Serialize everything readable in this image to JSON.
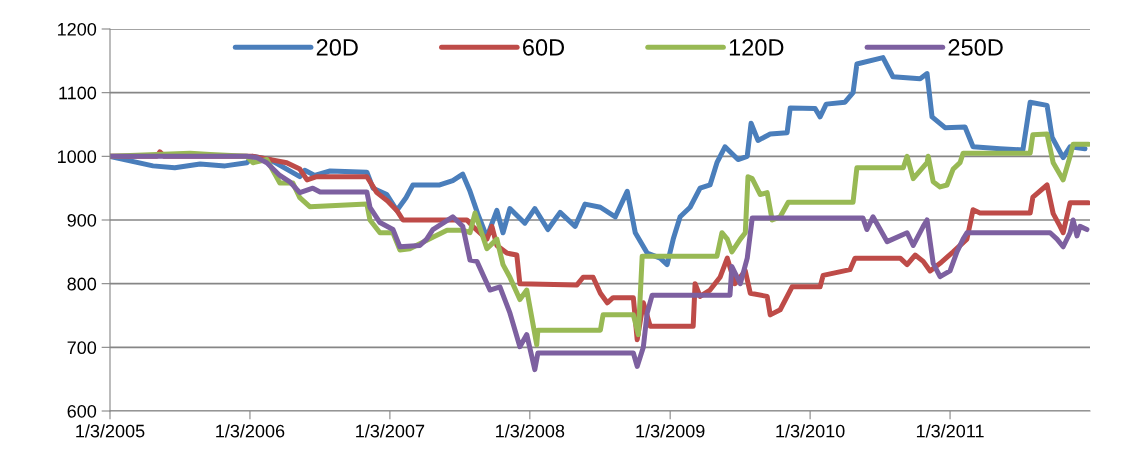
{
  "chart_data": {
    "type": "line",
    "legend": "top",
    "grid": "y",
    "marker": "none",
    "line_style": "solid",
    "xlim": [
      "2005-01-03",
      "2012-01-03"
    ],
    "xticks": [
      {
        "value": "2005-01-03",
        "label": "1/3/2005"
      },
      {
        "value": "2006-01-03",
        "label": "1/3/2006"
      },
      {
        "value": "2007-01-03",
        "label": "1/3/2007"
      },
      {
        "value": "2008-01-03",
        "label": "1/3/2008"
      },
      {
        "value": "2009-01-03",
        "label": "1/3/2009"
      },
      {
        "value": "2010-01-03",
        "label": "1/3/2010"
      },
      {
        "value": "2011-01-03",
        "label": "1/3/2011"
      }
    ],
    "ylim": [
      600,
      1200
    ],
    "yticks": [
      600,
      700,
      800,
      900,
      1000,
      1100,
      1200
    ],
    "series": [
      {
        "name": "20D",
        "color": "#4a7ebb",
        "x": [
          "2005-01-03",
          "2005-04-25",
          "2005-06-21",
          "2005-08-26",
          "2005-10-30",
          "2005-12-26",
          "2006-01-11",
          "2006-02-24",
          "2006-05-13",
          "2006-05-26",
          "2006-06-21",
          "2006-07-31",
          "2006-11-04",
          "2006-11-20",
          "2006-12-26",
          "2007-01-21",
          "2007-02-14",
          "2007-03-04",
          "2007-05-13",
          "2007-06-16",
          "2007-07-12",
          "2007-07-31",
          "2007-08-20",
          "2007-09-13",
          "2007-10-09",
          "2007-10-25",
          "2007-11-12",
          "2007-12-21",
          "2008-01-16",
          "2008-02-19",
          "2008-03-22",
          "2008-04-30",
          "2008-05-26",
          "2008-07-05",
          "2008-08-13",
          "2008-09-13",
          "2008-10-04",
          "2008-11-04",
          "2008-12-08",
          "2008-12-26",
          "2009-01-11",
          "2009-01-29",
          "2009-02-24",
          "2009-03-22",
          "2009-04-17",
          "2009-05-05",
          "2009-05-26",
          "2009-06-29",
          "2009-07-23",
          "2009-08-02",
          "2009-08-20",
          "2009-09-21",
          "2009-11-04",
          "2009-11-12",
          "2010-01-16",
          "2010-01-29",
          "2010-02-14",
          "2010-04-04",
          "2010-04-25",
          "2010-05-05",
          "2010-07-12",
          "2010-08-07",
          "2010-10-17",
          "2010-11-04",
          "2010-11-17",
          "2010-12-21",
          "2011-02-11",
          "2011-03-04",
          "2011-05-13",
          "2011-07-12",
          "2011-07-31",
          "2011-09-13",
          "2011-09-26",
          "2011-10-25",
          "2011-11-12",
          "2011-12-21"
        ],
        "values": [
          1000,
          985,
          982,
          988,
          985,
          990,
          1000,
          995,
          968,
          978,
          970,
          977,
          975,
          950,
          940,
          915,
          935,
          955,
          955,
          962,
          972,
          945,
          910,
          873,
          915,
          880,
          918,
          895,
          918,
          885,
          912,
          890,
          925,
          920,
          905,
          945,
          880,
          848,
          840,
          830,
          870,
          905,
          920,
          950,
          955,
          990,
          1015,
          995,
          1000,
          1052,
          1025,
          1035,
          1037,
          1076,
          1075,
          1062,
          1082,
          1085,
          1100,
          1145,
          1155,
          1125,
          1122,
          1130,
          1062,
          1045,
          1046,
          1015,
          1012,
          1010,
          1085,
          1080,
          1030,
          998,
          1015,
          1012
        ]
      },
      {
        "name": "60D",
        "color": "#be4b48",
        "x": [
          "2005-01-03",
          "2005-05-05",
          "2005-05-13",
          "2005-05-25",
          "2006-01-11",
          "2006-04-09",
          "2006-05-13",
          "2006-06-01",
          "2006-06-26",
          "2006-11-04",
          "2006-11-30",
          "2006-12-28",
          "2007-01-21",
          "2007-02-06",
          "2007-07-23",
          "2007-08-07",
          "2007-09-13",
          "2007-09-26",
          "2007-10-09",
          "2007-11-04",
          "2007-11-30",
          "2007-12-08",
          "2008-05-05",
          "2008-05-21",
          "2008-06-16",
          "2008-07-05",
          "2008-07-23",
          "2008-08-07",
          "2008-09-29",
          "2008-10-09",
          "2008-10-25",
          "2008-11-12",
          "2009-03-04",
          "2009-03-09",
          "2009-03-22",
          "2009-04-17",
          "2009-05-13",
          "2009-06-01",
          "2009-06-21",
          "2009-07-18",
          "2009-07-31",
          "2009-09-13",
          "2009-09-21",
          "2009-10-17",
          "2009-11-17",
          "2010-01-29",
          "2010-02-06",
          "2010-04-17",
          "2010-04-30",
          "2010-08-26",
          "2010-09-13",
          "2010-10-04",
          "2010-10-25",
          "2010-11-12",
          "2010-12-08",
          "2011-01-11",
          "2011-02-16",
          "2011-03-04",
          "2011-03-22",
          "2011-07-31",
          "2011-08-07",
          "2011-09-13",
          "2011-09-29",
          "2011-10-17",
          "2011-10-25",
          "2011-11-12",
          "2011-12-30"
        ],
        "values": [
          1000,
          1000,
          1007,
          1000,
          1000,
          990,
          980,
          963,
          968,
          968,
          943,
          930,
          915,
          900,
          900,
          890,
          870,
          890,
          860,
          848,
          845,
          800,
          798,
          810,
          810,
          785,
          770,
          778,
          778,
          712,
          770,
          733,
          733,
          800,
          780,
          790,
          810,
          840,
          800,
          820,
          785,
          780,
          751,
          759,
          795,
          795,
          813,
          822,
          840,
          840,
          830,
          845,
          835,
          820,
          832,
          850,
          870,
          916,
          911,
          911,
          936,
          955,
          910,
          890,
          880,
          927,
          927
        ]
      },
      {
        "name": "120D",
        "color": "#98b954",
        "x": [
          "2005-01-03",
          "2005-07-31",
          "2005-09-21",
          "2005-12-26",
          "2006-01-11",
          "2006-02-16",
          "2006-03-22",
          "2006-04-25",
          "2006-05-13",
          "2006-06-08",
          "2006-11-04",
          "2006-11-12",
          "2006-12-08",
          "2007-01-11",
          "2007-01-29",
          "2007-02-24",
          "2007-04-25",
          "2007-06-01",
          "2007-07-12",
          "2007-07-31",
          "2007-08-13",
          "2007-09-13",
          "2007-10-09",
          "2007-10-25",
          "2007-11-12",
          "2007-12-08",
          "2007-12-26",
          "2008-01-21",
          "2008-01-24",
          "2008-07-05",
          "2008-07-12",
          "2008-09-29",
          "2008-10-12",
          "2008-10-22",
          "2009-05-05",
          "2009-05-18",
          "2009-06-01",
          "2009-06-13",
          "2009-07-05",
          "2009-07-18",
          "2009-07-25",
          "2009-08-05",
          "2009-08-26",
          "2009-09-13",
          "2009-09-26",
          "2009-10-17",
          "2009-11-07",
          "2010-04-25",
          "2010-05-05",
          "2010-09-03",
          "2010-09-13",
          "2010-09-29",
          "2010-11-04",
          "2010-11-07",
          "2010-11-20",
          "2010-12-08",
          "2010-12-26",
          "2011-01-11",
          "2011-01-29",
          "2011-02-06",
          "2011-07-31",
          "2011-08-07",
          "2011-09-13",
          "2011-09-29",
          "2011-10-25",
          "2011-11-12",
          "2011-11-20",
          "2011-12-30"
        ],
        "values": [
          1000,
          1005,
          1003,
          1000,
          990,
          995,
          958,
          958,
          935,
          921,
          925,
          900,
          880,
          880,
          853,
          855,
          873,
          884,
          884,
          880,
          911,
          855,
          870,
          830,
          810,
          775,
          790,
          704,
          727,
          727,
          751,
          751,
          720,
          843,
          843,
          880,
          870,
          850,
          870,
          880,
          968,
          965,
          940,
          943,
          900,
          905,
          928,
          928,
          982,
          982,
          1000,
          965,
          990,
          1000,
          960,
          952,
          955,
          980,
          990,
          1005,
          1005,
          1034,
          1035,
          990,
          963,
          1000,
          1019,
          1019
        ]
      },
      {
        "name": "250D",
        "color": "#7d60a0",
        "x": [
          "2005-01-03",
          "2005-12-26",
          "2006-01-21",
          "2006-02-16",
          "2006-03-22",
          "2006-04-17",
          "2006-05-13",
          "2006-06-16",
          "2006-07-05",
          "2006-11-04",
          "2006-11-12",
          "2006-12-08",
          "2007-01-11",
          "2007-01-29",
          "2007-03-22",
          "2007-04-09",
          "2007-04-25",
          "2007-06-16",
          "2007-07-12",
          "2007-07-31",
          "2007-08-18",
          "2007-09-21",
          "2007-10-17",
          "2007-11-12",
          "2007-12-08",
          "2007-12-26",
          "2008-01-16",
          "2008-01-24",
          "2008-09-29",
          "2008-10-09",
          "2008-10-25",
          "2008-11-04",
          "2008-11-17",
          "2009-06-08",
          "2009-06-13",
          "2009-07-05",
          "2009-07-23",
          "2009-08-05",
          "2010-05-21",
          "2010-05-31",
          "2010-06-16",
          "2010-07-05",
          "2010-07-23",
          "2010-09-13",
          "2010-09-29",
          "2010-10-25",
          "2010-11-04",
          "2010-11-20",
          "2010-12-08",
          "2011-01-03",
          "2011-01-21",
          "2011-02-06",
          "2011-02-16",
          "2011-09-21",
          "2011-10-09",
          "2011-10-25",
          "2011-11-12",
          "2011-11-20",
          "2011-11-30",
          "2011-12-08",
          "2011-12-26"
        ],
        "values": [
          1000,
          1000,
          998,
          990,
          970,
          960,
          943,
          950,
          944,
          944,
          920,
          896,
          885,
          858,
          860,
          870,
          885,
          905,
          890,
          837,
          835,
          790,
          795,
          754,
          701,
          720,
          665,
          691,
          691,
          670,
          700,
          754,
          782,
          782,
          827,
          800,
          840,
          903,
          903,
          885,
          905,
          885,
          866,
          880,
          860,
          890,
          900,
          832,
          811,
          820,
          850,
          870,
          880,
          880,
          870,
          858,
          880,
          900,
          875,
          890,
          885
        ]
      }
    ]
  }
}
